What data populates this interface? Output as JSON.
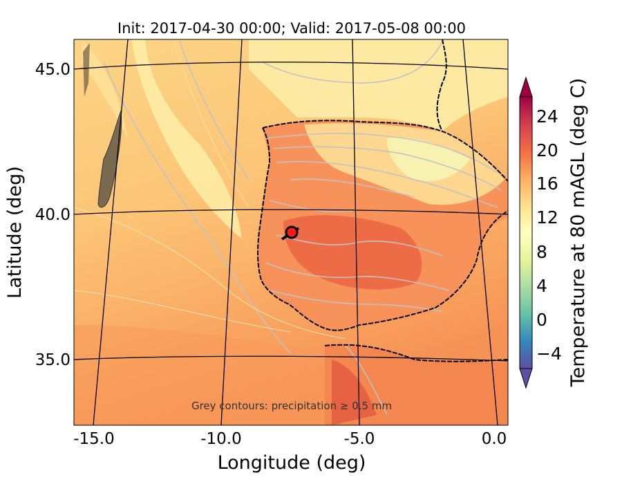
{
  "title": "Init: 2017-04-30 00:00; Valid: 2017-05-08 00:00",
  "xlabel": "Longitude (deg)",
  "ylabel": "Latitude (deg)",
  "colorbar_label": "Temperature at 80 mAGL (deg C)",
  "annotation": "Grey contours: precipitation ≥ 0.5 mm",
  "x_ticks": [
    "-15.0",
    "-10.0",
    "-5.0",
    "0.0"
  ],
  "y_ticks": [
    "45.0",
    "40.0",
    "35.0"
  ],
  "colorbar_ticks": [
    "24",
    "20",
    "16",
    "12",
    "8",
    "4",
    "0",
    "−4"
  ],
  "marker": {
    "lon": -7.6,
    "lat": 39.3,
    "color": "#ff1a1a"
  },
  "colormap": [
    "#5e4fa2",
    "#3288bd",
    "#66c2a5",
    "#abdda4",
    "#e6f598",
    "#ffffbf",
    "#fee08b",
    "#fdae61",
    "#f46d43",
    "#d53e4f",
    "#9e0142"
  ],
  "colorbar_range": [
    -7,
    28
  ]
}
